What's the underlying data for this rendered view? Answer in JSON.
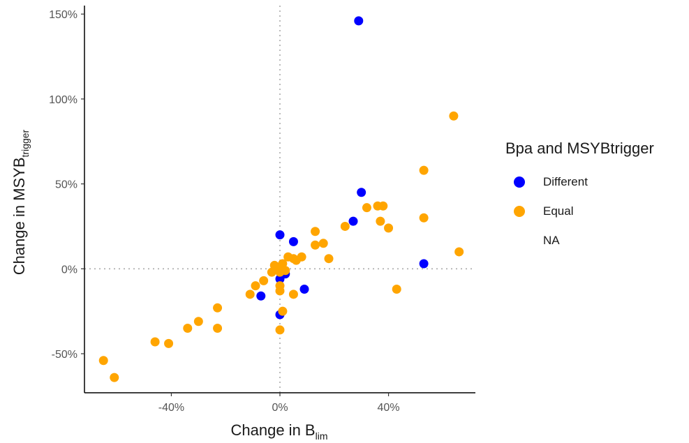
{
  "chart_data": {
    "type": "scatter",
    "xlabel": "Change in B",
    "xlabel_sub": "lim",
    "ylabel": "Change in MSYB",
    "ylabel_sub": "trigger",
    "xlim": [
      -72,
      72
    ],
    "ylim": [
      -73,
      155
    ],
    "x_ticks": [
      -40,
      0,
      40
    ],
    "x_tick_labels": [
      "-40%",
      "0%",
      "40%"
    ],
    "y_ticks": [
      -50,
      0,
      50,
      100,
      150
    ],
    "y_tick_labels": [
      "-50%",
      "0%",
      "50%",
      "100%",
      "150%"
    ],
    "reference_lines": {
      "x": 0,
      "y": 0,
      "style": "dotted"
    },
    "grid": false,
    "legend": {
      "title": "Bpa and MSYBtrigger",
      "placement": "right",
      "entries": [
        {
          "label": "Different",
          "color": "#0000ff"
        },
        {
          "label": "Equal",
          "color": "#ffa500"
        },
        {
          "label": "NA",
          "color": ""
        }
      ]
    },
    "series": [
      {
        "name": "Different",
        "color": "#0000ff",
        "points": [
          [
            29,
            146
          ],
          [
            30,
            45
          ],
          [
            27,
            28
          ],
          [
            0,
            20
          ],
          [
            5,
            16
          ],
          [
            2,
            -3
          ],
          [
            0,
            -6
          ],
          [
            9,
            -12
          ],
          [
            -7,
            -16
          ],
          [
            0,
            -27
          ],
          [
            53,
            3
          ]
        ]
      },
      {
        "name": "Equal",
        "color": "#ffa500",
        "points": [
          [
            64,
            90
          ],
          [
            53,
            58
          ],
          [
            53,
            30
          ],
          [
            66,
            10
          ],
          [
            43,
            -12
          ],
          [
            32,
            36
          ],
          [
            36,
            37
          ],
          [
            38,
            37
          ],
          [
            37,
            28
          ],
          [
            40,
            24
          ],
          [
            24,
            25
          ],
          [
            13,
            22
          ],
          [
            13,
            14
          ],
          [
            16,
            15
          ],
          [
            18,
            6
          ],
          [
            5,
            6
          ],
          [
            3,
            7
          ],
          [
            8,
            7
          ],
          [
            6,
            5
          ],
          [
            -2,
            2
          ],
          [
            0,
            1
          ],
          [
            1,
            3
          ],
          [
            -1,
            0
          ],
          [
            2,
            -1
          ],
          [
            0,
            -2
          ],
          [
            -3,
            -2
          ],
          [
            -6,
            -7
          ],
          [
            -9,
            -10
          ],
          [
            -11,
            -15
          ],
          [
            0,
            -10
          ],
          [
            0,
            -13
          ],
          [
            5,
            -15
          ],
          [
            1,
            -25
          ],
          [
            0,
            -36
          ],
          [
            -23,
            -23
          ],
          [
            -23,
            -35
          ],
          [
            -30,
            -31
          ],
          [
            -34,
            -35
          ],
          [
            -46,
            -43
          ],
          [
            -41,
            -44
          ],
          [
            -65,
            -54
          ],
          [
            -61,
            -64
          ]
        ]
      }
    ]
  }
}
